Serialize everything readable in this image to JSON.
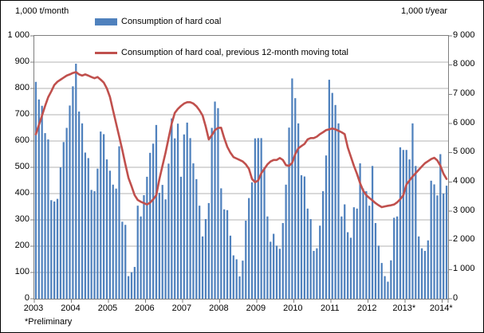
{
  "header": {
    "left_unit": "1,000 t/month",
    "right_unit": "1,000 t/year"
  },
  "legend": [
    {
      "type": "bar",
      "color": "#4f81bd",
      "label": "Consumption of hard coal"
    },
    {
      "type": "line",
      "color": "#c0504d",
      "label": "Consumption of hard coal, previous 12-month moving total"
    }
  ],
  "footnote": "*Preliminary",
  "chart_data": {
    "type": "bar+line",
    "x_unit": "month",
    "x_range": "2003-01 to 2014-02",
    "months_per_year": 12,
    "x_tick_labels": [
      "2003",
      "2004",
      "2005",
      "2006",
      "2007",
      "2008",
      "2009",
      "2010",
      "2011",
      "2012",
      "2013*",
      "2014*"
    ],
    "left_axis": {
      "title": "1,000 t/month",
      "min": 0,
      "max": 1000,
      "step": 100,
      "tick_labels": [
        "1 000",
        "900",
        "800",
        "700",
        "600",
        "500",
        "400",
        "300",
        "200",
        "100",
        "0"
      ]
    },
    "right_axis": {
      "title": "1,000 t/year",
      "min": 0,
      "max": 9000,
      "step": 1000,
      "tick_labels": [
        "9 000",
        "8 000",
        "7 000",
        "6 000",
        "5 000",
        "4 000",
        "3 000",
        "2 000",
        "1 000",
        "0"
      ]
    },
    "grid": "horizontal",
    "legend_position": "top",
    "series": [
      {
        "name": "Consumption of hard coal",
        "type": "bar",
        "axis": "left",
        "color": "#4f81bd",
        "values": [
          825,
          758,
          734,
          630,
          606,
          375,
          370,
          380,
          500,
          596,
          650,
          735,
          808,
          894,
          712,
          667,
          556,
          535,
          414,
          409,
          495,
          636,
          626,
          530,
          487,
          434,
          419,
          580,
          293,
          281,
          86,
          101,
          121,
          354,
          313,
          394,
          464,
          555,
          590,
          661,
          403,
          433,
          378,
          514,
          686,
          610,
          666,
          464,
          625,
          670,
          611,
          515,
          455,
          354,
          237,
          303,
          364,
          650,
          750,
          725,
          420,
          340,
          337,
          240,
          165,
          150,
          85,
          145,
          297,
          383,
          443,
          610,
          611,
          611,
          500,
          313,
          217,
          247,
          202,
          190,
          288,
          434,
          651,
          838,
          763,
          667,
          470,
          465,
          343,
          303,
          182,
          192,
          278,
          409,
          545,
          833,
          783,
          737,
          667,
          313,
          359,
          253,
          232,
          348,
          343,
          515,
          419,
          409,
          354,
          505,
          288,
          202,
          136,
          86,
          65,
          146,
          308,
          313,
          576,
          566,
          566,
          530,
          667,
          505,
          237,
          192,
          182,
          222,
          449,
          435,
          393,
          550,
          400,
          430
        ]
      },
      {
        "name": "Consumption of hard coal, previous 12-month moving total",
        "type": "line",
        "axis": "right",
        "color": "#c0504d",
        "values": [
          5630,
          5950,
          6270,
          6600,
          6900,
          7100,
          7320,
          7430,
          7500,
          7570,
          7640,
          7680,
          7730,
          7760,
          7680,
          7640,
          7680,
          7640,
          7590,
          7550,
          7590,
          7500,
          7400,
          7200,
          6909,
          6450,
          6000,
          5550,
          5091,
          4600,
          4136,
          3850,
          3545,
          3382,
          3320,
          3273,
          3227,
          3291,
          3400,
          3545,
          4091,
          4550,
          5000,
          5500,
          6000,
          6364,
          6500,
          6600,
          6682,
          6727,
          6727,
          6682,
          6591,
          6450,
          6273,
          5900,
          5455,
          5600,
          5773,
          5850,
          5854,
          5500,
          5200,
          5000,
          4850,
          4800,
          4750,
          4700,
          4600,
          4450,
          4100,
          3990,
          4050,
          4300,
          4450,
          4600,
          4700,
          4750,
          4750,
          4818,
          4750,
          4573,
          4550,
          4650,
          4950,
          5150,
          5227,
          5300,
          5455,
          5500,
          5500,
          5550,
          5636,
          5700,
          5773,
          5800,
          5830,
          5800,
          5750,
          5700,
          5636,
          5182,
          4864,
          4550,
          4273,
          3955,
          3700,
          3545,
          3450,
          3364,
          3273,
          3200,
          3136,
          3160,
          3182,
          3200,
          3227,
          3300,
          3409,
          3545,
          3911,
          4050,
          4184,
          4300,
          4414,
          4530,
          4640,
          4710,
          4780,
          4827,
          4736,
          4554,
          4280,
          4100
        ]
      }
    ]
  }
}
